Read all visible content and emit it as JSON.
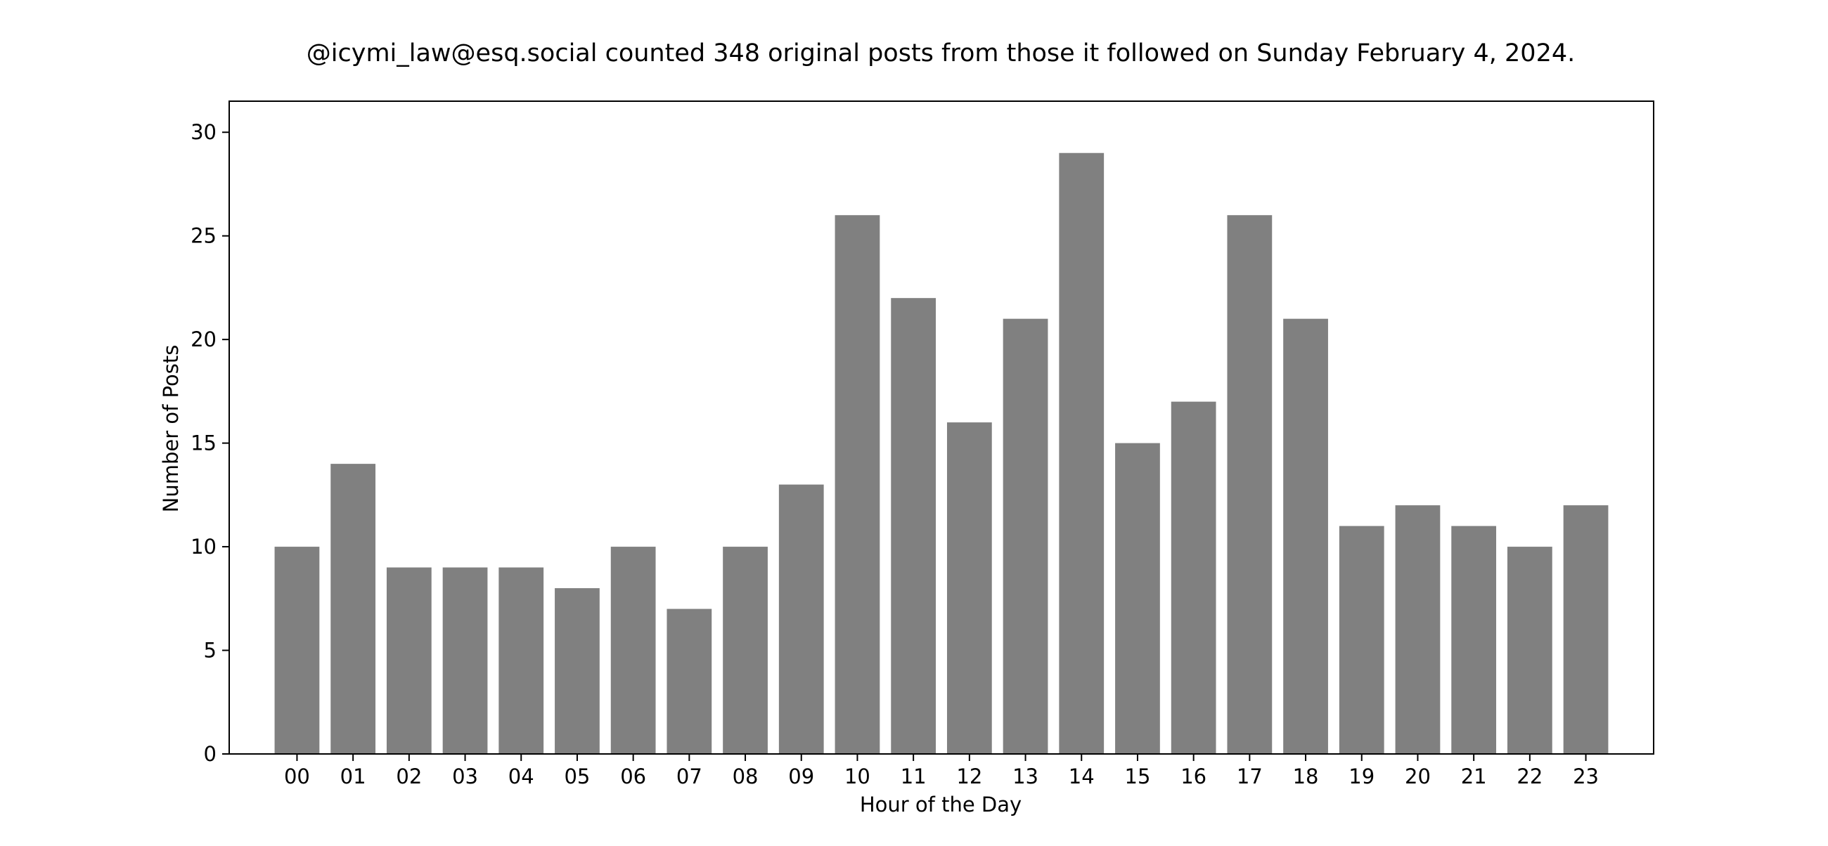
{
  "chart_data": {
    "type": "bar",
    "title": "@icymi_law@esq.social counted 348 original posts from those it followed on Sunday February 4, 2024.",
    "xlabel": "Hour of the Day",
    "ylabel": "Number of Posts",
    "categories": [
      "00",
      "01",
      "02",
      "03",
      "04",
      "05",
      "06",
      "07",
      "08",
      "09",
      "10",
      "11",
      "12",
      "13",
      "14",
      "15",
      "16",
      "17",
      "18",
      "19",
      "20",
      "21",
      "22",
      "23"
    ],
    "values": [
      10,
      14,
      9,
      9,
      9,
      8,
      10,
      7,
      10,
      13,
      26,
      22,
      16,
      21,
      29,
      15,
      17,
      26,
      21,
      11,
      12,
      11,
      10,
      12
    ],
    "ylim": [
      0,
      30
    ],
    "yticks": [
      0,
      5,
      10,
      15,
      20,
      25,
      30
    ],
    "grid": false,
    "bar_color": "#808080"
  }
}
